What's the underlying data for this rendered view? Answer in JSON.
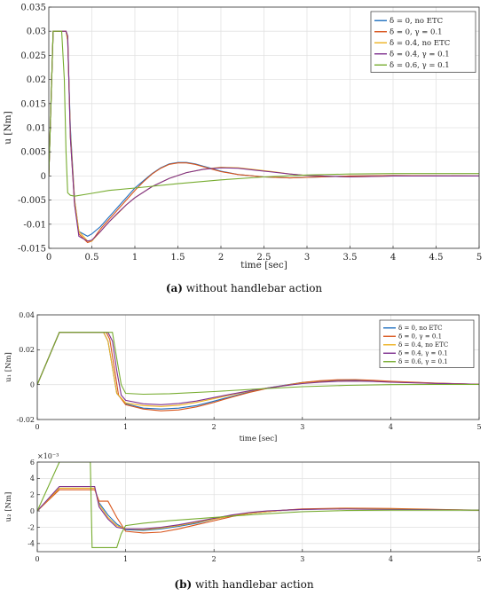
{
  "panel_a": {
    "caption_letter": "(a)",
    "caption_text": "without handlebar action"
  },
  "panel_b": {
    "caption_letter": "(b)",
    "caption_text": "with handlebar action"
  },
  "colors": {
    "s1": "#1f6fbf",
    "s2": "#d9541a",
    "s3": "#edb120",
    "s4": "#7e2f8e",
    "s5": "#77ac30"
  },
  "chart_data": [
    {
      "id": "chart-a",
      "type": "line",
      "ylabel": "u [Nm]",
      "xlabel": "time [sec]",
      "xlim": [
        0,
        5
      ],
      "ylim": [
        -0.015,
        0.035
      ],
      "xticks": [
        0,
        0.5,
        1,
        1.5,
        2,
        2.5,
        3,
        3.5,
        4,
        4.5,
        5
      ],
      "xtick_labels": [
        "0",
        "0.5",
        "1",
        "1.5",
        "2",
        "2.5",
        "3",
        "3.5",
        "4",
        "4.5",
        "5"
      ],
      "yticks": [
        -0.015,
        -0.01,
        -0.005,
        0,
        0.005,
        0.01,
        0.015,
        0.02,
        0.025,
        0.03,
        0.035
      ],
      "ytick_labels": [
        "-0.015",
        "-0.01",
        "-0.005",
        "0",
        "0.005",
        "0.01",
        "0.015",
        "0.02",
        "0.025",
        "0.03",
        "0.035"
      ],
      "grid": true,
      "legend_position": "top-right",
      "series": [
        {
          "name": "δ = 0, no ETC",
          "color": "#1f6fbf",
          "x": [
            0,
            0.05,
            0.2,
            0.22,
            0.25,
            0.3,
            0.35,
            0.45,
            0.5,
            0.6,
            0.7,
            0.8,
            0.9,
            1.0,
            1.1,
            1.2,
            1.3,
            1.4,
            1.5,
            1.6,
            1.7,
            1.8,
            1.9,
            2.0,
            2.2,
            2.5,
            2.8,
            3.0,
            3.5,
            4.0,
            5.0
          ],
          "y": [
            0,
            0.03,
            0.03,
            0.028,
            0.01,
            -0.005,
            -0.0115,
            -0.0125,
            -0.012,
            -0.0105,
            -0.0085,
            -0.0065,
            -0.0045,
            -0.0025,
            -0.001,
            0.0005,
            0.0017,
            0.0025,
            0.0028,
            0.0028,
            0.0025,
            0.002,
            0.0015,
            0.001,
            0.0003,
            -0.0002,
            -0.0004,
            -0.0003,
            0,
            0.0001,
            0
          ]
        },
        {
          "name": "δ = 0, γ = 0.1",
          "color": "#d9541a",
          "x": [
            0,
            0.05,
            0.2,
            0.22,
            0.25,
            0.3,
            0.35,
            0.45,
            0.5,
            0.6,
            0.7,
            0.8,
            0.9,
            1.0,
            1.1,
            1.2,
            1.3,
            1.4,
            1.5,
            1.6,
            1.7,
            1.8,
            1.9,
            2.0,
            2.2,
            2.5,
            2.8,
            3.0,
            3.5,
            4.0,
            5.0
          ],
          "y": [
            0,
            0.03,
            0.03,
            0.029,
            0.008,
            -0.006,
            -0.012,
            -0.0138,
            -0.0135,
            -0.011,
            -0.009,
            -0.007,
            -0.005,
            -0.003,
            -0.0012,
            0.0004,
            0.0016,
            0.0024,
            0.0027,
            0.0027,
            0.0024,
            0.0019,
            0.0014,
            0.0009,
            0.0003,
            -0.0002,
            -0.0004,
            -0.0003,
            0,
            0.0001,
            0
          ]
        },
        {
          "name": "δ = 0.4, no ETC",
          "color": "#edb120",
          "x": [
            0,
            0.05,
            0.2,
            0.22,
            0.25,
            0.3,
            0.35,
            0.45,
            0.5,
            0.6,
            0.7,
            0.8,
            0.9,
            1.0,
            1.2,
            1.4,
            1.6,
            1.8,
            2.0,
            2.2,
            2.4,
            2.6,
            2.8,
            3.0,
            3.5,
            4.0,
            5.0
          ],
          "y": [
            0,
            0.03,
            0.03,
            0.028,
            0.009,
            -0.005,
            -0.0115,
            -0.0135,
            -0.0135,
            -0.0115,
            -0.0095,
            -0.0078,
            -0.006,
            -0.0045,
            -0.0022,
            -0.0005,
            0.0007,
            0.0014,
            0.0018,
            0.0017,
            0.0013,
            0.0009,
            0.0004,
            0.0001,
            -0.0002,
            0,
            0
          ]
        },
        {
          "name": "δ = 0.4, γ = 0.1",
          "color": "#7e2f8e",
          "x": [
            0,
            0.05,
            0.2,
            0.22,
            0.25,
            0.3,
            0.35,
            0.45,
            0.5,
            0.6,
            0.7,
            0.8,
            0.9,
            1.0,
            1.2,
            1.4,
            1.6,
            1.8,
            2.0,
            2.2,
            2.4,
            2.6,
            2.8,
            3.0,
            3.5,
            4.0,
            5.0
          ],
          "y": [
            0,
            0.03,
            0.03,
            0.029,
            0.008,
            -0.006,
            -0.0125,
            -0.0135,
            -0.0133,
            -0.0115,
            -0.0095,
            -0.0077,
            -0.006,
            -0.0045,
            -0.0022,
            -0.0005,
            0.0007,
            0.0014,
            0.0017,
            0.0016,
            0.0012,
            0.0008,
            0.0004,
            0.0001,
            -0.0002,
            0,
            0
          ]
        },
        {
          "name": "δ = 0.6, γ = 0.1",
          "color": "#77ac30",
          "x": [
            0,
            0.05,
            0.15,
            0.18,
            0.2,
            0.22,
            0.25,
            0.3,
            0.5,
            0.7,
            1.0,
            1.5,
            2.0,
            2.5,
            3.0,
            3.5,
            4.0,
            4.5,
            5.0
          ],
          "y": [
            0,
            0.03,
            0.03,
            0.02,
            0.005,
            -0.0035,
            -0.004,
            -0.0042,
            -0.0036,
            -0.003,
            -0.0025,
            -0.0016,
            -0.0008,
            -0.0002,
            0.0002,
            0.0004,
            0.0005,
            0.0005,
            0.0005
          ]
        }
      ]
    },
    {
      "id": "chart-b1",
      "type": "line",
      "ylabel": "u₁ [Nm]",
      "xlabel": "time [sec]",
      "xlim": [
        0,
        5
      ],
      "ylim": [
        -0.02,
        0.04
      ],
      "xticks": [
        0,
        1,
        2,
        3,
        4,
        5
      ],
      "xtick_labels": [
        "0",
        "1",
        "2",
        "3",
        "4",
        "5"
      ],
      "yticks": [
        -0.02,
        0,
        0.02,
        0.04
      ],
      "ytick_labels": [
        "-0.02",
        "0",
        "0.02",
        "0.04"
      ],
      "grid": true,
      "legend_position": "top-right",
      "series": [
        {
          "name": "δ = 0, no ETC",
          "color": "#1f6fbf",
          "x": [
            0,
            0.25,
            0.75,
            0.8,
            0.85,
            0.9,
            1.0,
            1.2,
            1.4,
            1.6,
            1.8,
            2.0,
            2.2,
            2.4,
            2.6,
            2.8,
            3.0,
            3.2,
            3.4,
            3.6,
            3.8,
            4.0,
            4.5,
            5.0
          ],
          "y": [
            0,
            0.03,
            0.03,
            0.025,
            0.01,
            -0.005,
            -0.011,
            -0.0135,
            -0.014,
            -0.0135,
            -0.012,
            -0.0095,
            -0.0068,
            -0.0042,
            -0.002,
            -0.0003,
            0.0012,
            0.002,
            0.0025,
            0.0026,
            0.0022,
            0.0017,
            0.0008,
            0.0002
          ]
        },
        {
          "name": "δ = 0, γ = 0.1",
          "color": "#d9541a",
          "x": [
            0,
            0.25,
            0.78,
            0.82,
            0.87,
            0.92,
            1.0,
            1.2,
            1.4,
            1.6,
            1.8,
            2.0,
            2.2,
            2.4,
            2.6,
            2.8,
            3.0,
            3.2,
            3.4,
            3.6,
            3.8,
            4.0,
            4.5,
            5.0
          ],
          "y": [
            0,
            0.03,
            0.03,
            0.026,
            0.01,
            -0.006,
            -0.0115,
            -0.014,
            -0.015,
            -0.0145,
            -0.0128,
            -0.0102,
            -0.0072,
            -0.0045,
            -0.0022,
            -0.0004,
            0.0012,
            0.0022,
            0.0028,
            0.0029,
            0.0025,
            0.0019,
            0.0009,
            0.0002
          ]
        },
        {
          "name": "δ = 0.4, no ETC",
          "color": "#edb120",
          "x": [
            0,
            0.25,
            0.75,
            0.8,
            0.85,
            0.9,
            1.0,
            1.2,
            1.4,
            1.6,
            1.8,
            2.0,
            2.2,
            2.4,
            2.6,
            2.8,
            3.0,
            3.2,
            3.4,
            3.6,
            3.8,
            4.0,
            4.5,
            5.0
          ],
          "y": [
            0,
            0.03,
            0.03,
            0.025,
            0.01,
            -0.005,
            -0.0105,
            -0.012,
            -0.0125,
            -0.0118,
            -0.0102,
            -0.008,
            -0.0058,
            -0.0038,
            -0.002,
            -0.0005,
            0.0008,
            0.0016,
            0.002,
            0.0021,
            0.0019,
            0.0015,
            0.0007,
            0.0002
          ]
        },
        {
          "name": "δ = 0.4, γ = 0.1",
          "color": "#7e2f8e",
          "x": [
            0,
            0.25,
            0.8,
            0.85,
            0.9,
            0.95,
            1.0,
            1.2,
            1.4,
            1.6,
            1.8,
            2.0,
            2.2,
            2.4,
            2.6,
            2.8,
            3.0,
            3.2,
            3.4,
            3.6,
            3.8,
            4.0,
            4.5,
            5.0
          ],
          "y": [
            0,
            0.03,
            0.03,
            0.025,
            0.008,
            -0.006,
            -0.009,
            -0.011,
            -0.0115,
            -0.0108,
            -0.0094,
            -0.0074,
            -0.0054,
            -0.0036,
            -0.002,
            -0.0006,
            0.0006,
            0.0014,
            0.0019,
            0.002,
            0.0018,
            0.0014,
            0.0007,
            0.0002
          ]
        },
        {
          "name": "δ = 0.6, γ = 0.1",
          "color": "#77ac30",
          "x": [
            0,
            0.25,
            0.85,
            0.9,
            0.95,
            1.0,
            1.2,
            1.5,
            2.0,
            2.5,
            3.0,
            3.5,
            4.0,
            4.5,
            5.0
          ],
          "y": [
            0,
            0.03,
            0.03,
            0.015,
            0.0,
            -0.005,
            -0.0055,
            -0.0052,
            -0.004,
            -0.0025,
            -0.0012,
            -0.0004,
            0,
            0.0001,
            0.0001
          ]
        }
      ]
    },
    {
      "id": "chart-b2",
      "type": "line",
      "ylabel": "u₂ [Nm]",
      "xlabel": "",
      "xlim": [
        0,
        5
      ],
      "ylim": [
        -5,
        6
      ],
      "scale_label": "×10⁻³",
      "xticks": [
        0,
        1,
        2,
        3,
        4,
        5
      ],
      "xtick_labels": [
        "0",
        "1",
        "2",
        "3",
        "4",
        "5"
      ],
      "yticks": [
        -4,
        -2,
        0,
        2,
        4,
        6
      ],
      "ytick_labels": [
        "-4",
        "-2",
        "0",
        "2",
        "4",
        "6"
      ],
      "grid": true,
      "series": [
        {
          "name": "δ = 0, no ETC",
          "color": "#1f6fbf",
          "x": [
            0,
            0.25,
            0.65,
            0.7,
            0.8,
            0.9,
            1.0,
            1.2,
            1.4,
            1.6,
            1.8,
            2.0,
            2.2,
            2.4,
            2.6,
            2.8,
            3.0,
            3.5,
            4.0,
            4.5,
            5.0
          ],
          "y": [
            0,
            2.8,
            2.8,
            1.0,
            -0.5,
            -1.6,
            -2.3,
            -2.4,
            -2.2,
            -1.9,
            -1.5,
            -1.0,
            -0.6,
            -0.3,
            -0.1,
            0.1,
            0.2,
            0.3,
            0.25,
            0.15,
            0.1
          ]
        },
        {
          "name": "δ = 0, γ = 0.1",
          "color": "#d9541a",
          "x": [
            0,
            0.25,
            0.65,
            0.7,
            0.8,
            0.9,
            1.0,
            1.2,
            1.4,
            1.6,
            1.8,
            2.0,
            2.2,
            2.4,
            2.6,
            2.8,
            3.0,
            3.5,
            4.0,
            4.5,
            5.0
          ],
          "y": [
            0,
            2.6,
            2.6,
            1.2,
            1.2,
            -0.8,
            -2.5,
            -2.7,
            -2.6,
            -2.2,
            -1.7,
            -1.2,
            -0.7,
            -0.3,
            -0.1,
            0.1,
            0.25,
            0.35,
            0.3,
            0.2,
            0.1
          ]
        },
        {
          "name": "δ = 0.4, no ETC",
          "color": "#edb120",
          "x": [
            0,
            0.25,
            0.65,
            0.7,
            0.8,
            0.9,
            1.0,
            1.2,
            1.4,
            1.6,
            1.8,
            2.0,
            2.2,
            2.4,
            2.6,
            2.8,
            3.0,
            3.5,
            4.0,
            4.5,
            5.0
          ],
          "y": [
            0,
            2.8,
            2.8,
            0.8,
            -0.8,
            -1.8,
            -2.2,
            -2.3,
            -2.1,
            -1.8,
            -1.4,
            -1.0,
            -0.6,
            -0.3,
            -0.1,
            0.1,
            0.2,
            0.3,
            0.25,
            0.15,
            0.1
          ]
        },
        {
          "name": "δ = 0.4, γ = 0.1",
          "color": "#7e2f8e",
          "x": [
            0,
            0.25,
            0.65,
            0.7,
            0.8,
            0.9,
            1.0,
            1.2,
            1.4,
            1.6,
            1.8,
            2.0,
            2.2,
            2.4,
            2.6,
            2.8,
            3.0,
            3.5,
            4.0,
            4.5,
            5.0
          ],
          "y": [
            0,
            3.0,
            3.0,
            0.5,
            -1.0,
            -2.0,
            -2.2,
            -2.2,
            -2.0,
            -1.7,
            -1.3,
            -0.9,
            -0.5,
            -0.2,
            0.0,
            0.1,
            0.2,
            0.25,
            0.2,
            0.15,
            0.1
          ]
        },
        {
          "name": "δ = 0.6, γ = 0.1",
          "color": "#77ac30",
          "x": [
            0,
            0.25,
            0.6,
            0.62,
            0.9,
            0.95,
            1.0,
            1.2,
            1.5,
            2.0,
            2.5,
            3.0,
            3.5,
            4.0,
            4.5,
            5.0
          ],
          "y": [
            0,
            6.0,
            6.0,
            -4.5,
            -4.5,
            -2.8,
            -1.8,
            -1.5,
            -1.2,
            -0.8,
            -0.4,
            -0.1,
            0.05,
            0.1,
            0.1,
            0.1
          ]
        }
      ]
    }
  ]
}
